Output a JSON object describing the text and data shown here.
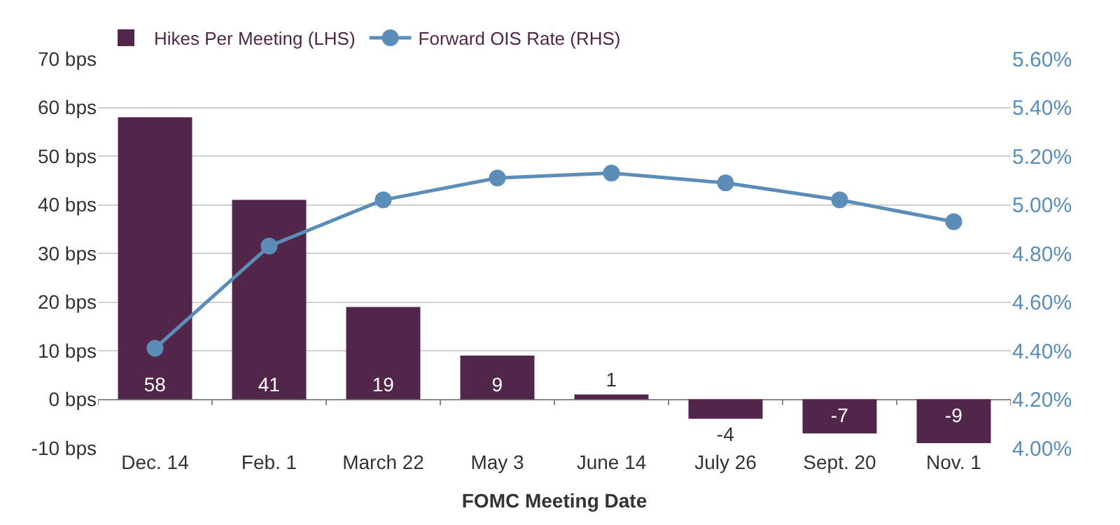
{
  "chart_data": {
    "type": "bar",
    "xlabel": "FOMC Meeting Date",
    "categories": [
      "Dec. 14",
      "Feb. 1",
      "March 22",
      "May 3",
      "June 14",
      "July 26",
      "Sept. 20",
      "Nov. 1"
    ],
    "series": [
      {
        "name": "Hikes Per Meeting (LHS)",
        "color": "#52264a",
        "values": [
          58,
          41,
          19,
          9,
          1,
          -4,
          -7,
          -9
        ],
        "value_labels": [
          "58",
          "41",
          "19",
          "9",
          "1",
          "-4",
          "-7",
          "-9"
        ]
      },
      {
        "name": "Forward OIS Rate (RHS)",
        "type": "line",
        "axis": "y2",
        "color": "#5b8db8",
        "marker": "circle",
        "values": [
          4.41,
          4.83,
          5.02,
          5.11,
          5.13,
          5.09,
          5.02,
          4.93
        ]
      }
    ],
    "grid": "y",
    "legend": "top left",
    "ylim": [
      -10,
      70
    ],
    "yticks": [
      {
        "value": -10,
        "label": "-10 bps"
      },
      {
        "value": 0,
        "label": "0 bps"
      },
      {
        "value": 10,
        "label": "10 bps"
      },
      {
        "value": 20,
        "label": "20 bps"
      },
      {
        "value": 30,
        "label": "30 bps"
      },
      {
        "value": 40,
        "label": "40 bps"
      },
      {
        "value": 50,
        "label": "50 bps"
      },
      {
        "value": 60,
        "label": "60 bps"
      },
      {
        "value": 70,
        "label": "70 bps"
      }
    ],
    "y2lim": [
      4.0,
      5.6
    ],
    "y2ticks": [
      {
        "value": 4.0,
        "label": "4.00%"
      },
      {
        "value": 4.2,
        "label": "4.20%"
      },
      {
        "value": 4.4,
        "label": "4.40%"
      },
      {
        "value": 4.6,
        "label": "4.60%"
      },
      {
        "value": 4.8,
        "label": "4.80%"
      },
      {
        "value": 5.0,
        "label": "5.00%"
      },
      {
        "value": 5.2,
        "label": "5.20%"
      },
      {
        "value": 5.4,
        "label": "5.40%"
      },
      {
        "value": 5.6,
        "label": "5.60%"
      }
    ]
  }
}
